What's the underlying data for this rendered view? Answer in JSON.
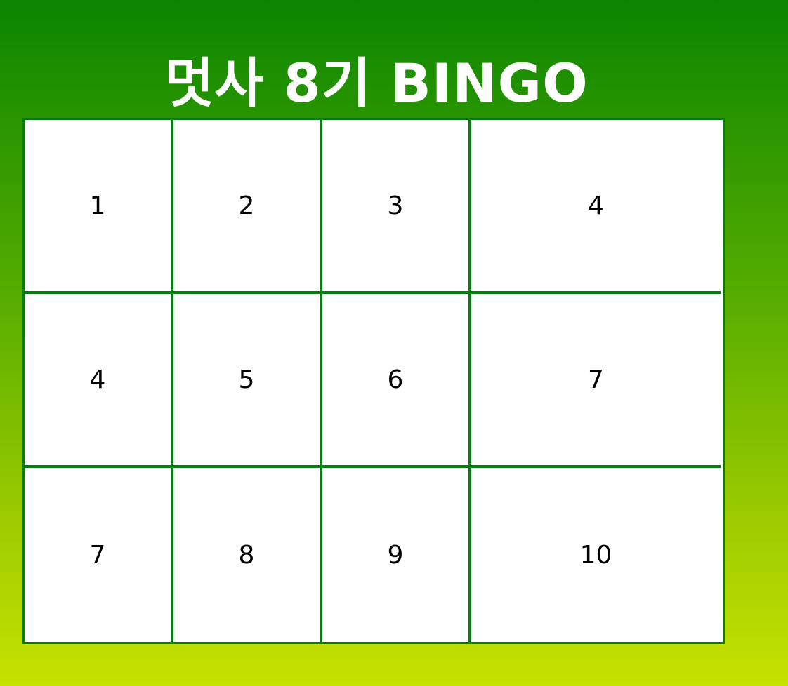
{
  "title": "멋사 8기 BINGO",
  "colors": {
    "gradient_top": "#0a8500",
    "gradient_bottom": "#c6e200",
    "grid_border": "#0a7d12",
    "cell_background": "#ffffff",
    "title_text": "#ffffff"
  },
  "board": {
    "rows": [
      [
        "1",
        "2",
        "3",
        "4"
      ],
      [
        "4",
        "5",
        "6",
        "7"
      ],
      [
        "7",
        "8",
        "9",
        "10"
      ]
    ]
  }
}
